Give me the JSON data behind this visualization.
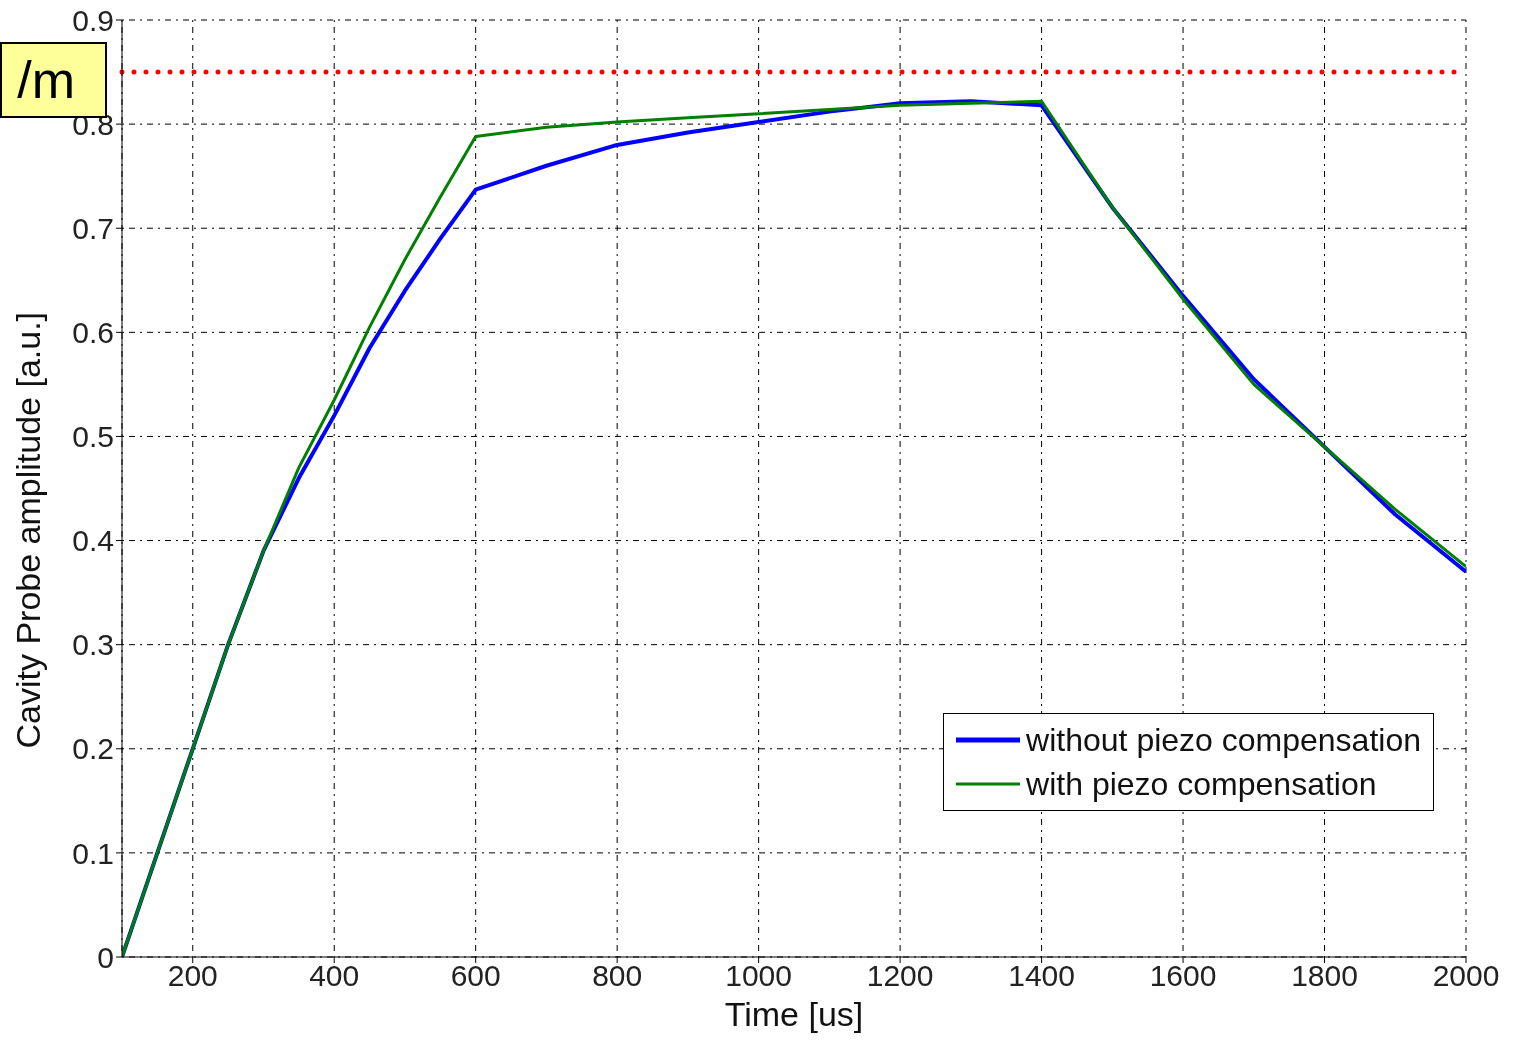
{
  "chart_data": {
    "type": "line",
    "xlabel": "Time [us]",
    "ylabel": "Cavity Probe amplitude [a.u.]",
    "x": [
      100,
      150,
      200,
      250,
      300,
      350,
      400,
      450,
      500,
      550,
      600,
      700,
      800,
      900,
      1000,
      1100,
      1200,
      1300,
      1400,
      1500,
      1600,
      1700,
      1800,
      1900,
      2000
    ],
    "series": [
      {
        "name": "without piezo compensation",
        "color": "#0000ff",
        "values": [
          0,
          0.1,
          0.2,
          0.3,
          0.39,
          0.46,
          0.52,
          0.585,
          0.64,
          0.69,
          0.737,
          0.76,
          0.78,
          0.792,
          0.802,
          0.812,
          0.82,
          0.822,
          0.818,
          0.72,
          0.635,
          0.555,
          0.49,
          0.425,
          0.37
        ]
      },
      {
        "name": "with piezo compensation",
        "color": "#007f00",
        "values": [
          0,
          0.1,
          0.2,
          0.3,
          0.39,
          0.47,
          0.535,
          0.605,
          0.67,
          0.73,
          0.788,
          0.797,
          0.802,
          0.806,
          0.81,
          0.814,
          0.818,
          0.82,
          0.822,
          0.72,
          0.632,
          0.55,
          0.49,
          0.43,
          0.375
        ]
      }
    ],
    "xlim": [
      100,
      2000
    ],
    "xticks": [
      200,
      400,
      600,
      800,
      1000,
      1200,
      1400,
      1600,
      1800,
      2000
    ],
    "ylim": [
      0,
      0.9
    ],
    "yticks": [
      0,
      0.1,
      0.2,
      0.3,
      0.4,
      0.5,
      0.6,
      0.7,
      0.8,
      0.9
    ],
    "grid": true,
    "legend": "bottom right",
    "marker": "none",
    "line_style": "solid",
    "ref_lines": [
      {
        "axis": "y",
        "value": 0.85,
        "color": "#ff0000",
        "line_style": "dotted"
      }
    ],
    "annotations": [
      "/m"
    ]
  }
}
